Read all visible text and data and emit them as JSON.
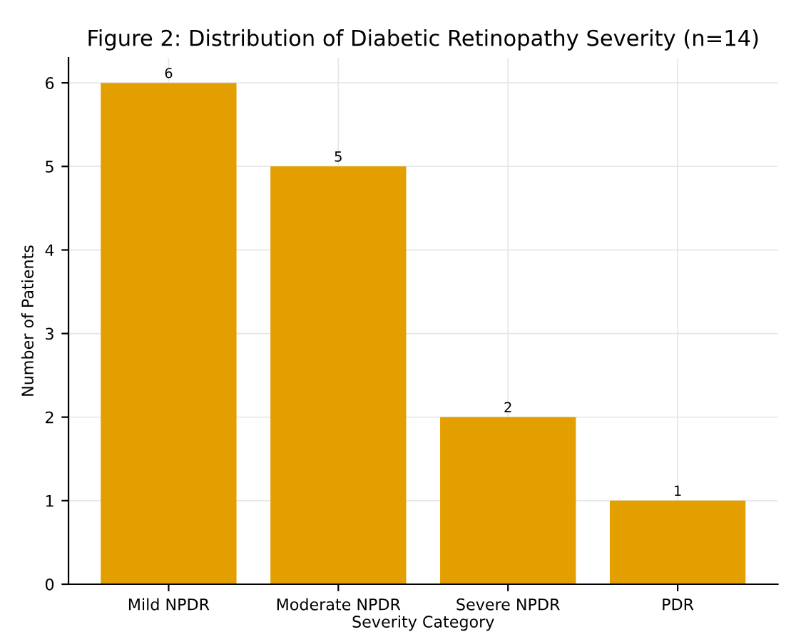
{
  "chart_data": {
    "type": "bar",
    "title": "Figure 2: Distribution of Diabetic Retinopathy Severity (n=14)",
    "xlabel": "Severity Category",
    "ylabel": "Number of Patients",
    "categories": [
      "Mild NPDR",
      "Moderate NPDR",
      "Severe NPDR",
      "PDR"
    ],
    "values": [
      6,
      5,
      2,
      1
    ],
    "color": "#e39e00",
    "ylim": [
      0,
      6.3
    ],
    "yticks": [
      0,
      1,
      2,
      3,
      4,
      5,
      6
    ],
    "grid": true,
    "data_labels": true
  }
}
